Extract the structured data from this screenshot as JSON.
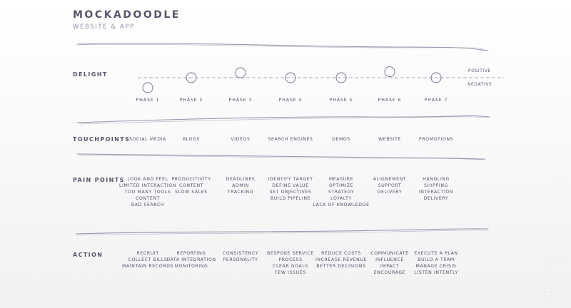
{
  "brand": {
    "title": "MOCKADOODLE",
    "subtitle": "WEBSITE & APP"
  },
  "delight": {
    "label": "DELIGHT",
    "positive": "POSITIVE",
    "negative": "NEGATIVE",
    "phases": [
      "PHASE 1",
      "PHASE 2",
      "PHASE 3",
      "PHASE 4",
      "PHASE 5",
      "PHASE 6",
      "PHASE 7"
    ],
    "levels": [
      -1,
      0,
      0.5,
      0,
      0,
      0.6,
      0
    ]
  },
  "touchpoints": {
    "label": "TOUCHPOINTS",
    "items": [
      "SOCIAL MEDIA",
      "BLOGS",
      "VIDEOS",
      "SEARCH ENGINES",
      "DEMOS",
      "WEBSITE",
      "PROMOTIONS"
    ]
  },
  "pain_points": {
    "label": "PAIN POINTS",
    "columns": [
      [
        "LOOK AND FEEL",
        "LIMITED INTERACTION",
        "TOO MANY TOOLS",
        "CONTENT",
        "BAD SEARCH"
      ],
      [
        "PRODUCITIVITY",
        "CONTENT",
        "SLOW SALES"
      ],
      [
        "DEADLINES",
        "ADMIN",
        "TRACKING"
      ],
      [
        "IDENTIFY TARGET",
        "DEFINE VALUE",
        "SET OBJECTIVES",
        "BUILD PIPELINE"
      ],
      [
        "MEASURE",
        "OPTIMIZE",
        "STRATEGY",
        "LOYALTY",
        "LACK OF KNOWLEDGE"
      ],
      [
        "ALIGNEMENT",
        "SUPPORT",
        "DELIVERY"
      ],
      [
        "HANDLING",
        "SHIPPING",
        "INTERACTION",
        "DELIVERY"
      ]
    ]
  },
  "action": {
    "label": "ACTION",
    "columns": [
      [
        "RECRUIT",
        "COLLECT BILLS",
        "MAINTAIN RECORDS"
      ],
      [
        "REPORTING",
        "DATA INTEGRATION",
        "MONITORING"
      ],
      [
        "CONSISTENCY",
        "PERSONALITY"
      ],
      [
        "BESPOKE SERVICE",
        "PROCESS",
        "CLEAR GOALS",
        "FEW ISSUES"
      ],
      [
        "REDUCE COSTS",
        "INCREASE REVENUE",
        "BETTER DECISIONS"
      ],
      [
        "COMMUNICATE",
        "INFLUENCE",
        "IMPACT",
        "ENCOURAGE"
      ],
      [
        "EXECUTE A PLAN",
        "BUILD A TEAM",
        "MANAGE CRISIS",
        "LISTEN INTENTLY"
      ]
    ]
  },
  "colors": {
    "text": "#505266",
    "line": "#8f90a6",
    "accent": "#55566b"
  }
}
